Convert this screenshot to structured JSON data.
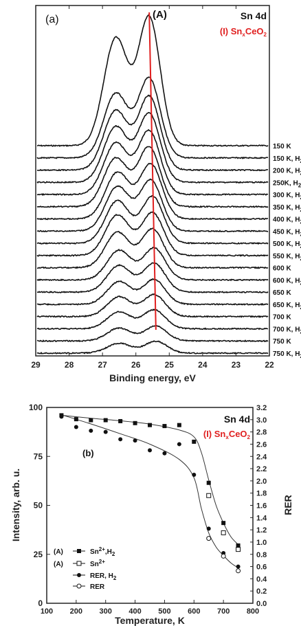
{
  "chart_data": [
    {
      "type": "line",
      "panel": "(a)",
      "title": "Sn 4d",
      "subtitle": {
        "prefix": "(I) Sn",
        "sub": "x",
        "mid": "CeO",
        "sub2": "2"
      },
      "annotation": "(A)",
      "xlabel": "Binding energy, eV",
      "xlim": [
        29,
        22
      ],
      "xticks": [
        "29",
        "28",
        "27",
        "26",
        "25",
        "24",
        "23",
        "22"
      ],
      "marker_line": {
        "x_top": 25.6,
        "x_bottom": 25.4,
        "color": "#e01f1f"
      },
      "series": [
        {
          "name": "150 K",
          "peak1": 26.6,
          "peak2": 25.6,
          "a1": 156,
          "a2": 186
        },
        {
          "name": "150 K, H",
          "sub": "2",
          "peak1": 26.6,
          "peak2": 25.6,
          "a1": 130,
          "a2": 160
        },
        {
          "name": "200 K, H",
          "sub": "2",
          "peak1": 26.6,
          "peak2": 25.6,
          "a1": 120,
          "a2": 148
        },
        {
          "name": "250K, H",
          "sub": "2",
          "peak1": 26.6,
          "peak2": 25.6,
          "a1": 112,
          "a2": 138
        },
        {
          "name": "300 K, H",
          "sub": "2",
          "peak1": 26.6,
          "peak2": 25.6,
          "a1": 104,
          "a2": 128
        },
        {
          "name": "350 K, H",
          "sub": "2",
          "peak1": 26.6,
          "peak2": 25.6,
          "a1": 98,
          "a2": 120
        },
        {
          "name": "400 K, H",
          "sub": "2",
          "peak1": 26.55,
          "peak2": 25.55,
          "a1": 94,
          "a2": 110
        },
        {
          "name": "450 K, H",
          "sub": "2",
          "peak1": 26.55,
          "peak2": 25.55,
          "a1": 90,
          "a2": 102
        },
        {
          "name": "500 K, H",
          "sub": "2",
          "peak1": 26.55,
          "peak2": 25.5,
          "a1": 86,
          "a2": 94
        },
        {
          "name": "550 K, H",
          "sub": "2",
          "peak1": 26.55,
          "peak2": 25.5,
          "a1": 82,
          "a2": 86
        },
        {
          "name": "600 K",
          "peak1": 26.55,
          "peak2": 25.5,
          "a1": 72,
          "a2": 78
        },
        {
          "name": "600 K, H",
          "sub": "2",
          "peak1": 26.5,
          "peak2": 25.45,
          "a1": 60,
          "a2": 64
        },
        {
          "name": "650 K",
          "peak1": 26.5,
          "peak2": 25.45,
          "a1": 54,
          "a2": 58
        },
        {
          "name": "650 K, H",
          "sub": "2",
          "peak1": 26.5,
          "peak2": 25.45,
          "a1": 46,
          "a2": 50
        },
        {
          "name": "700 K",
          "peak1": 26.5,
          "peak2": 25.45,
          "a1": 40,
          "a2": 44
        },
        {
          "name": "700 K, H",
          "sub": "2",
          "peak1": 26.5,
          "peak2": 25.45,
          "a1": 34,
          "a2": 38
        },
        {
          "name": "750 K",
          "peak1": 26.5,
          "peak2": 25.4,
          "a1": 26,
          "a2": 30
        },
        {
          "name": "750 K, H",
          "sub": "2",
          "peak1": 26.5,
          "peak2": 25.4,
          "a1": 20,
          "a2": 24
        }
      ]
    },
    {
      "type": "scatter",
      "panel": "(b)",
      "title": "Sn 4d",
      "subtitle": {
        "prefix": "(I) Sn",
        "sub": "x",
        "mid": "CeO",
        "sub2": "2"
      },
      "xlabel": "Temperature, K",
      "ylabel": "Intensity, arb. u.",
      "y2label": "RER",
      "xlim": [
        100,
        800
      ],
      "ylim": [
        0,
        100
      ],
      "y2lim": [
        0.0,
        3.2
      ],
      "xticks": [
        100,
        200,
        300,
        400,
        500,
        600,
        700,
        800
      ],
      "yticks": [
        0,
        25,
        50,
        75,
        100
      ],
      "y2ticks": [
        "0.0",
        "0.2",
        "0.4",
        "0.6",
        "0.8",
        "1.0",
        "1.2",
        "1.4",
        "1.6",
        "1.8",
        "2.0",
        "2.2",
        "2.4",
        "2.6",
        "2.8",
        "3.0",
        "3.2"
      ],
      "series": [
        {
          "name": "Sn",
          "sup": "2+",
          "suffix": ",H",
          "sub": "2",
          "prefix": "(A)",
          "marker": "filled-square",
          "axis": "left",
          "x": [
            150,
            200,
            250,
            300,
            350,
            400,
            450,
            500,
            550,
            600,
            650,
            700,
            750
          ],
          "y": [
            96,
            94,
            93.5,
            93.5,
            93,
            92,
            91,
            90.5,
            91,
            82.5,
            61.5,
            41,
            29.5
          ]
        },
        {
          "name": "Sn",
          "sup": "2+",
          "suffix": "",
          "sub": "",
          "prefix": "(A)",
          "marker": "open-square",
          "axis": "left",
          "x": [
            650,
            700,
            750
          ],
          "y": [
            55,
            36,
            27.5
          ]
        },
        {
          "name": "RER, H",
          "sub": "2",
          "prefix": "",
          "marker": "filled-circle",
          "axis": "right",
          "x": [
            150,
            200,
            250,
            300,
            350,
            400,
            450,
            500,
            550,
            600,
            650,
            700,
            750
          ],
          "y": [
            3.05,
            2.88,
            2.82,
            2.8,
            2.68,
            2.66,
            2.5,
            2.45,
            2.6,
            2.1,
            1.22,
            0.82,
            0.6
          ]
        },
        {
          "name": "RER",
          "sub": "",
          "prefix": "",
          "marker": "open-circle",
          "axis": "right",
          "x": [
            650,
            700,
            750
          ],
          "y": [
            1.06,
            0.77,
            0.53
          ]
        }
      ],
      "fit_lines": [
        {
          "axis": "left",
          "x": [
            150,
            250,
            350,
            450,
            550,
            600,
            625,
            650,
            675,
            700,
            725,
            750
          ],
          "y": [
            96,
            94.5,
            93.2,
            91.5,
            88.5,
            85,
            77,
            63,
            50,
            41,
            34,
            30
          ]
        },
        {
          "axis": "right",
          "x": [
            150,
            250,
            350,
            450,
            550,
            600,
            625,
            650,
            675,
            700,
            725,
            750
          ],
          "y": [
            3.08,
            2.93,
            2.77,
            2.6,
            2.35,
            2.05,
            1.55,
            1.15,
            0.92,
            0.78,
            0.66,
            0.58
          ]
        }
      ]
    }
  ]
}
